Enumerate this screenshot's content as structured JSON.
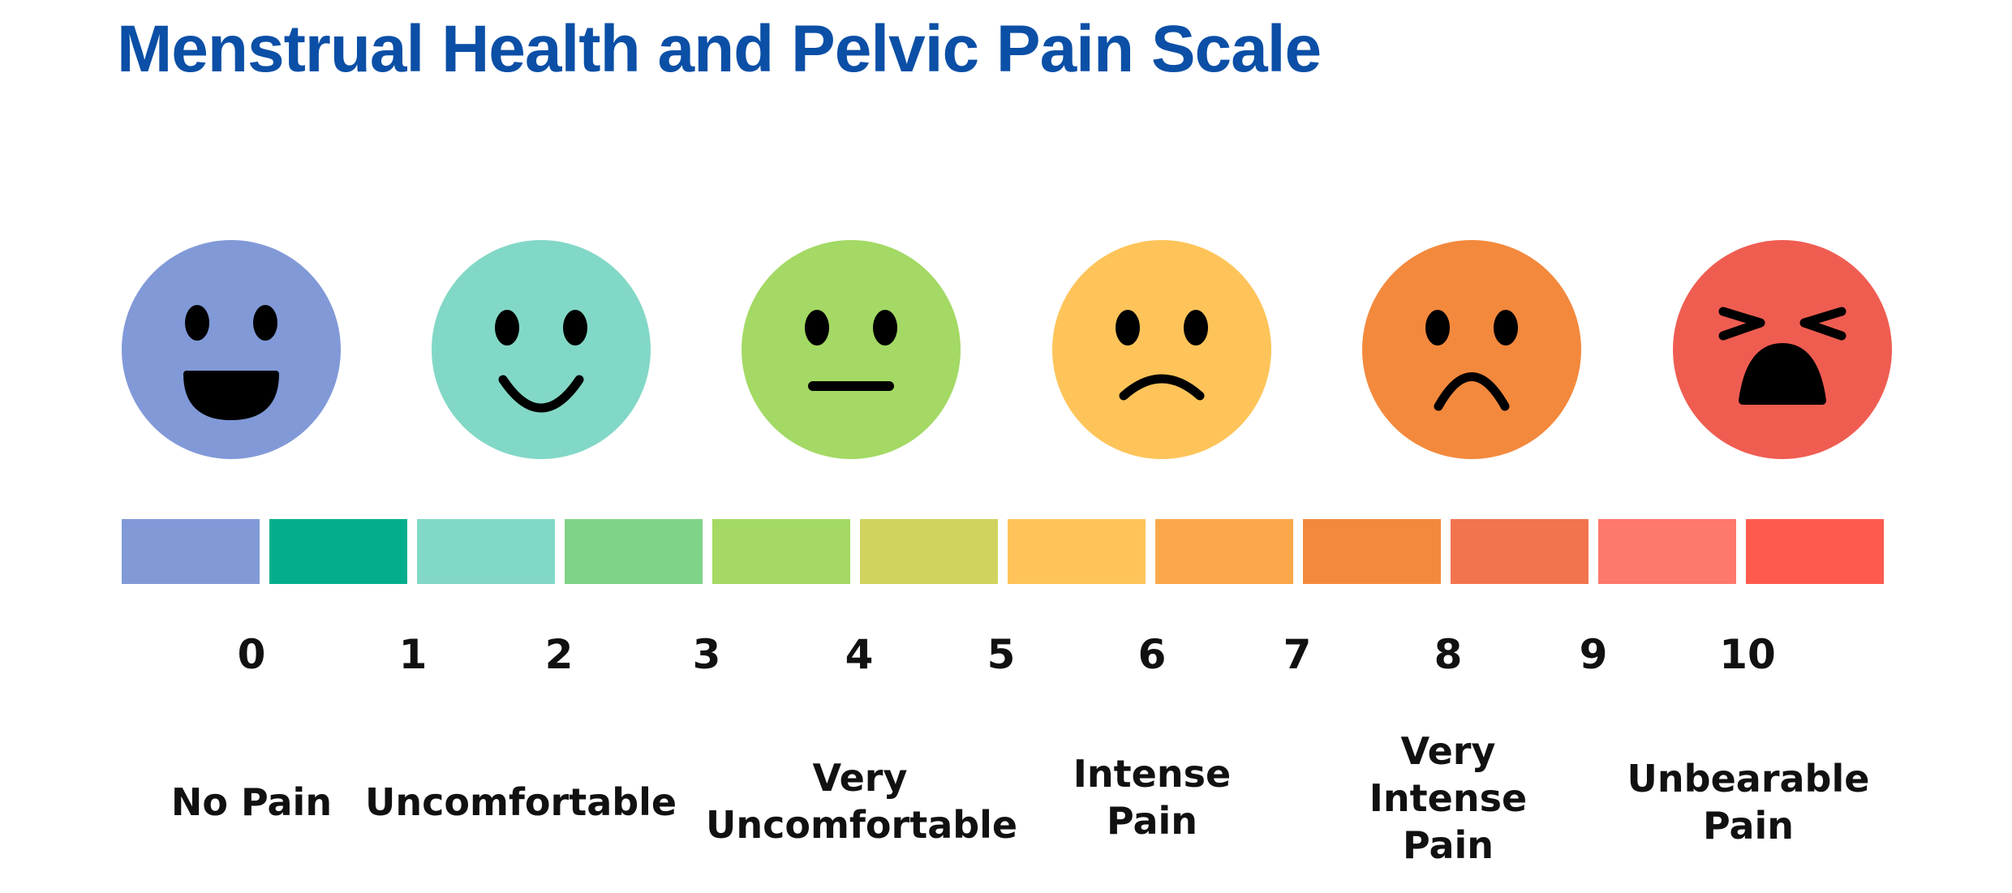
{
  "title": "Menstrual Health and Pelvic Pain Scale",
  "faces": [
    {
      "name": "laughing-face-icon",
      "color": "#8299d8"
    },
    {
      "name": "smiling-face-icon",
      "color": "#82d8c6"
    },
    {
      "name": "neutral-face-icon",
      "color": "#a3d964"
    },
    {
      "name": "sad-face-icon",
      "color": "#fec45a"
    },
    {
      "name": "frowning-face-icon",
      "color": "#f3893d"
    },
    {
      "name": "crying-face-icon",
      "color": "#ef5d51"
    }
  ],
  "bar_colors": [
    "#8299d8",
    "#03ae8c",
    "#82d8c6",
    "#7ed387",
    "#a3d964",
    "#d1d35f",
    "#fec45a",
    "#fba84b",
    "#f3893d",
    "#f1744f",
    "#fe786c",
    "#fe5b4e"
  ],
  "numbers": [
    "0",
    "1",
    "2",
    "3",
    "4",
    "5",
    "6",
    "7",
    "8",
    "9",
    "10"
  ],
  "labels": [
    {
      "lines": [
        "No Pain"
      ]
    },
    {
      "lines": [
        "Uncomfortable"
      ]
    },
    {
      "lines": [
        "Very",
        "Uncomfortable"
      ]
    },
    {
      "lines": [
        "Intense",
        "Pain"
      ]
    },
    {
      "lines": [
        "Very",
        "Intense",
        "Pain"
      ]
    },
    {
      "lines": [
        "Unbearable",
        "Pain"
      ]
    }
  ]
}
